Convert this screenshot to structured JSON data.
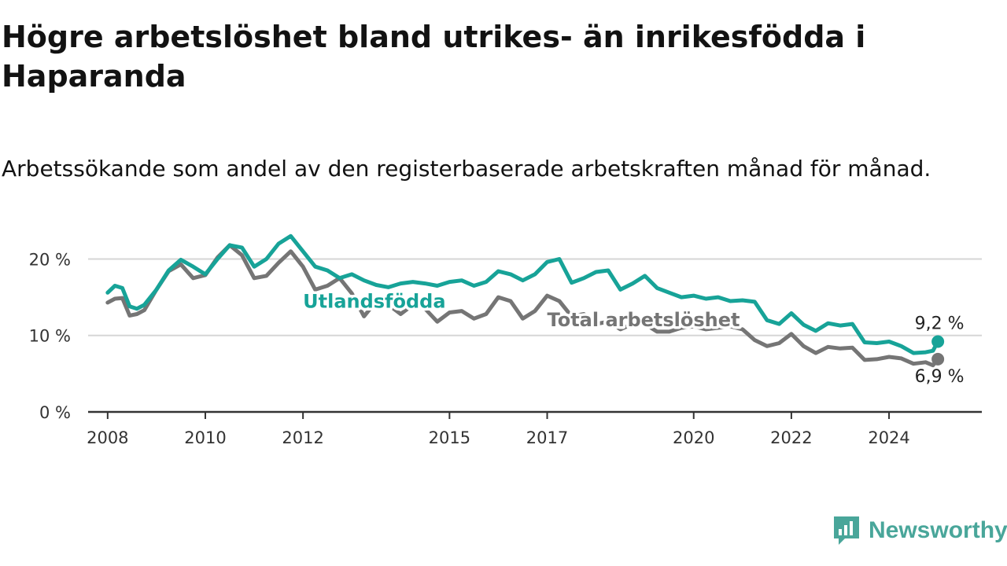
{
  "title": "Högre arbetslöshet bland utrikes- än inrikesfödda i Haparanda",
  "subtitle": "Arbetssökande som andel av den registerbaserade arbetskraften månad för månad.",
  "brand": {
    "name": "Newsworthy",
    "icon": "newsworthy-logo-icon"
  },
  "colors": {
    "utlandsfodda": "#17a398",
    "total": "#757575",
    "grid": "#d6d6d6",
    "axis": "#333333"
  },
  "chart_data": {
    "type": "line",
    "title": "Högre arbetslöshet bland utrikes- än inrikesfödda i Haparanda",
    "subtitle": "Arbetssökande som andel av den registerbaserade arbetskraften månad för månad.",
    "xlim": [
      2007.6,
      2025.9
    ],
    "ylim": [
      0,
      22
    ],
    "y_ticks": [
      0,
      10,
      20
    ],
    "y_tick_labels": [
      "0 %",
      "10 %",
      "20 %"
    ],
    "x_ticks": [
      2008,
      2010,
      2012,
      2015,
      2017,
      2020,
      2022,
      2024
    ],
    "x_tick_labels": [
      "2008",
      "2010",
      "2012",
      "2015",
      "2017",
      "2020",
      "2022",
      "2024"
    ],
    "grid": true,
    "legend": "inline labels on the lines",
    "series": [
      {
        "name": "Utlandsfödda",
        "color": "#17a398",
        "end_label": "9,2 %",
        "points": [
          [
            2008.0,
            15.6
          ],
          [
            2008.15,
            16.5
          ],
          [
            2008.3,
            16.2
          ],
          [
            2008.45,
            13.8
          ],
          [
            2008.6,
            13.5
          ],
          [
            2008.75,
            14.0
          ],
          [
            2009.0,
            16.0
          ],
          [
            2009.25,
            18.5
          ],
          [
            2009.5,
            19.9
          ],
          [
            2009.75,
            19.0
          ],
          [
            2010.0,
            18.0
          ],
          [
            2010.25,
            20.0
          ],
          [
            2010.5,
            21.8
          ],
          [
            2010.75,
            21.5
          ],
          [
            2011.0,
            19.0
          ],
          [
            2011.25,
            20.0
          ],
          [
            2011.5,
            22.0
          ],
          [
            2011.75,
            23.0
          ],
          [
            2012.0,
            21.0
          ],
          [
            2012.25,
            19.0
          ],
          [
            2012.5,
            18.5
          ],
          [
            2012.75,
            17.5
          ],
          [
            2013.0,
            18.0
          ],
          [
            2013.25,
            17.2
          ],
          [
            2013.5,
            16.6
          ],
          [
            2013.75,
            16.3
          ],
          [
            2014.0,
            16.8
          ],
          [
            2014.25,
            17.0
          ],
          [
            2014.5,
            16.8
          ],
          [
            2014.75,
            16.5
          ],
          [
            2015.0,
            17.0
          ],
          [
            2015.25,
            17.2
          ],
          [
            2015.5,
            16.5
          ],
          [
            2015.75,
            17.0
          ],
          [
            2016.0,
            18.4
          ],
          [
            2016.25,
            18.0
          ],
          [
            2016.5,
            17.2
          ],
          [
            2016.75,
            18.0
          ],
          [
            2017.0,
            19.6
          ],
          [
            2017.25,
            20.0
          ],
          [
            2017.5,
            16.9
          ],
          [
            2017.75,
            17.5
          ],
          [
            2018.0,
            18.3
          ],
          [
            2018.25,
            18.5
          ],
          [
            2018.5,
            16.0
          ],
          [
            2018.75,
            16.8
          ],
          [
            2019.0,
            17.8
          ],
          [
            2019.25,
            16.2
          ],
          [
            2019.5,
            15.6
          ],
          [
            2019.75,
            15.0
          ],
          [
            2020.0,
            15.2
          ],
          [
            2020.25,
            14.8
          ],
          [
            2020.5,
            15.0
          ],
          [
            2020.75,
            14.5
          ],
          [
            2021.0,
            14.6
          ],
          [
            2021.25,
            14.4
          ],
          [
            2021.5,
            12.0
          ],
          [
            2021.75,
            11.5
          ],
          [
            2022.0,
            12.9
          ],
          [
            2022.25,
            11.4
          ],
          [
            2022.5,
            10.6
          ],
          [
            2022.75,
            11.6
          ],
          [
            2023.0,
            11.3
          ],
          [
            2023.25,
            11.5
          ],
          [
            2023.5,
            9.1
          ],
          [
            2023.75,
            9.0
          ],
          [
            2024.0,
            9.2
          ],
          [
            2024.25,
            8.6
          ],
          [
            2024.5,
            7.7
          ],
          [
            2024.75,
            7.8
          ],
          [
            2024.9,
            8.0
          ],
          [
            2025.0,
            9.2
          ]
        ]
      },
      {
        "name": "Total arbetslöshet",
        "color": "#757575",
        "end_label": "6,9 %",
        "points": [
          [
            2008.0,
            14.3
          ],
          [
            2008.15,
            14.8
          ],
          [
            2008.3,
            14.9
          ],
          [
            2008.45,
            12.6
          ],
          [
            2008.6,
            12.8
          ],
          [
            2008.75,
            13.3
          ],
          [
            2009.0,
            16.0
          ],
          [
            2009.25,
            18.4
          ],
          [
            2009.5,
            19.3
          ],
          [
            2009.75,
            17.5
          ],
          [
            2010.0,
            17.9
          ],
          [
            2010.25,
            20.2
          ],
          [
            2010.5,
            21.8
          ],
          [
            2010.75,
            20.5
          ],
          [
            2011.0,
            17.5
          ],
          [
            2011.25,
            17.8
          ],
          [
            2011.5,
            19.5
          ],
          [
            2011.75,
            21.0
          ],
          [
            2012.0,
            19.0
          ],
          [
            2012.25,
            16.0
          ],
          [
            2012.5,
            16.5
          ],
          [
            2012.75,
            17.5
          ],
          [
            2013.0,
            15.5
          ],
          [
            2013.25,
            12.5
          ],
          [
            2013.5,
            14.5
          ],
          [
            2013.75,
            14.0
          ],
          [
            2014.0,
            12.8
          ],
          [
            2014.25,
            14.0
          ],
          [
            2014.5,
            13.5
          ],
          [
            2014.75,
            11.8
          ],
          [
            2015.0,
            13.0
          ],
          [
            2015.25,
            13.2
          ],
          [
            2015.5,
            12.2
          ],
          [
            2015.75,
            12.8
          ],
          [
            2016.0,
            15.0
          ],
          [
            2016.25,
            14.5
          ],
          [
            2016.5,
            12.2
          ],
          [
            2016.75,
            13.2
          ],
          [
            2017.0,
            15.2
          ],
          [
            2017.25,
            14.5
          ],
          [
            2017.5,
            12.5
          ],
          [
            2017.75,
            12.8
          ],
          [
            2018.0,
            11.5
          ],
          [
            2018.25,
            11.8
          ],
          [
            2018.5,
            10.8
          ],
          [
            2018.75,
            11.5
          ],
          [
            2019.0,
            11.5
          ],
          [
            2019.25,
            10.5
          ],
          [
            2019.5,
            10.5
          ],
          [
            2019.75,
            11.0
          ],
          [
            2020.0,
            11.2
          ],
          [
            2020.25,
            10.8
          ],
          [
            2020.5,
            11.0
          ],
          [
            2020.75,
            11.2
          ],
          [
            2021.0,
            10.8
          ],
          [
            2021.25,
            9.4
          ],
          [
            2021.5,
            8.6
          ],
          [
            2021.75,
            9.0
          ],
          [
            2022.0,
            10.2
          ],
          [
            2022.25,
            8.6
          ],
          [
            2022.5,
            7.7
          ],
          [
            2022.75,
            8.5
          ],
          [
            2023.0,
            8.3
          ],
          [
            2023.25,
            8.4
          ],
          [
            2023.5,
            6.8
          ],
          [
            2023.75,
            6.9
          ],
          [
            2024.0,
            7.2
          ],
          [
            2024.25,
            7.0
          ],
          [
            2024.5,
            6.3
          ],
          [
            2024.75,
            6.5
          ],
          [
            2024.9,
            6.1
          ],
          [
            2025.0,
            6.9
          ]
        ]
      }
    ]
  }
}
